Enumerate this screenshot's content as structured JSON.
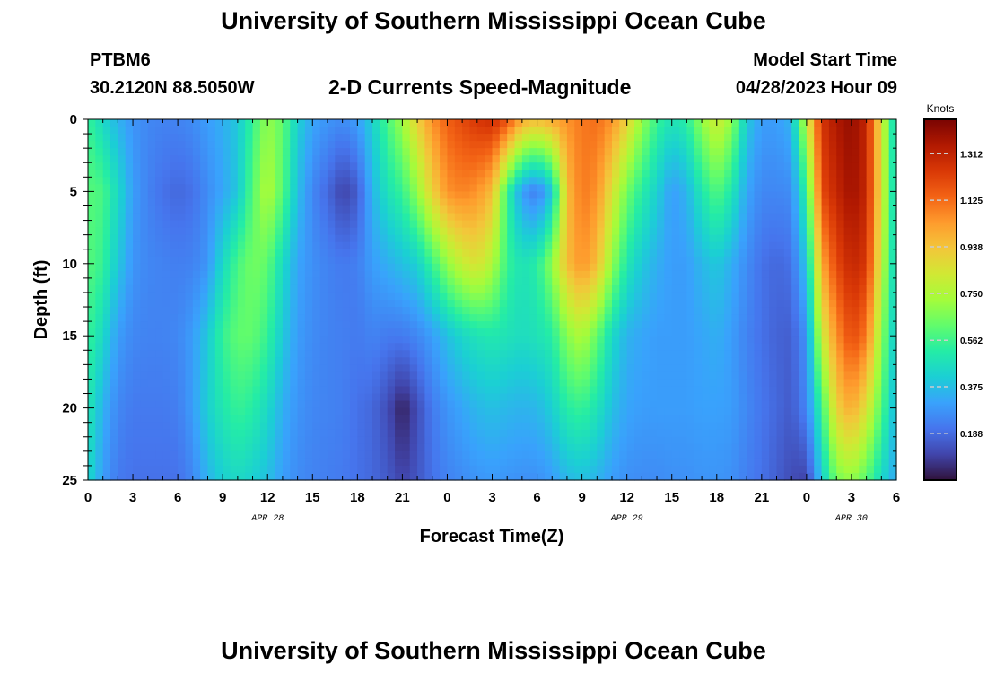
{
  "page": {
    "title_top": "University of Southern Mississippi Ocean Cube",
    "station_id": "PTBM6",
    "station_coords": "30.2120N  88.5050W",
    "subtitle": "2-D Currents Speed-Magnitude",
    "model_start_label": "Model Start Time",
    "model_start_value": "04/28/2023 Hour 09",
    "title_bottom": "University of Southern Mississippi Ocean Cube"
  },
  "colors": {
    "scale": [
      "#30123b",
      "#4145ab",
      "#4675ed",
      "#39a2fc",
      "#1bcfd4",
      "#24eca6",
      "#61fc6c",
      "#a4fc3b",
      "#d1e834",
      "#f3c63a",
      "#fe9b2d",
      "#f36315",
      "#d93806",
      "#b11901",
      "#7a0402"
    ]
  },
  "chart_data": {
    "type": "heatmap",
    "xlabel": "Forecast Time(Z)",
    "ylabel": "Depth (ft)",
    "x_tick_labels": [
      "0",
      "3",
      "6",
      "9",
      "12",
      "15",
      "18",
      "21",
      "0",
      "3",
      "6",
      "9",
      "12",
      "15",
      "18",
      "21",
      "0",
      "3",
      "6"
    ],
    "date_labels": [
      {
        "label": "APR 28",
        "at_hour": 12
      },
      {
        "label": "APR 29",
        "at_hour": 36
      },
      {
        "label": "APR 30",
        "at_hour": 51
      }
    ],
    "x_range_hours": [
      0,
      54
    ],
    "y_ticks": [
      0,
      5,
      10,
      15,
      20,
      25
    ],
    "y_range": [
      0,
      25
    ],
    "colorbar": {
      "unit_label": "Knots",
      "tick_labels": [
        "1.312",
        "1.125",
        "0.938",
        "0.750",
        "0.562",
        "0.375",
        "0.188"
      ],
      "tick_values": [
        1.312,
        1.125,
        0.938,
        0.75,
        0.562,
        0.375,
        0.188
      ],
      "range": [
        0.0,
        1.45
      ]
    },
    "depths_ft": [
      0,
      5,
      10,
      15,
      20,
      25
    ],
    "columns": [
      {
        "hour": 0,
        "speeds": [
          0.55,
          0.6,
          0.6,
          0.55,
          0.5,
          0.45
        ]
      },
      {
        "hour": 1,
        "speeds": [
          0.45,
          0.58,
          0.55,
          0.45,
          0.35,
          0.3
        ]
      },
      {
        "hour": 2,
        "speeds": [
          0.35,
          0.45,
          0.4,
          0.3,
          0.25,
          0.22
        ]
      },
      {
        "hour": 3,
        "speeds": [
          0.28,
          0.3,
          0.28,
          0.25,
          0.22,
          0.2
        ]
      },
      {
        "hour": 4,
        "speeds": [
          0.25,
          0.24,
          0.25,
          0.24,
          0.22,
          0.2
        ]
      },
      {
        "hour": 5,
        "speeds": [
          0.24,
          0.2,
          0.24,
          0.24,
          0.22,
          0.2
        ]
      },
      {
        "hour": 6,
        "speeds": [
          0.24,
          0.18,
          0.23,
          0.25,
          0.23,
          0.2
        ]
      },
      {
        "hour": 7,
        "speeds": [
          0.26,
          0.2,
          0.24,
          0.3,
          0.3,
          0.25
        ]
      },
      {
        "hour": 8,
        "speeds": [
          0.3,
          0.26,
          0.28,
          0.4,
          0.42,
          0.35
        ]
      },
      {
        "hour": 9,
        "speeds": [
          0.34,
          0.32,
          0.45,
          0.55,
          0.5,
          0.42
        ]
      },
      {
        "hour": 10,
        "speeds": [
          0.4,
          0.4,
          0.58,
          0.62,
          0.55,
          0.45
        ]
      },
      {
        "hour": 11,
        "speeds": [
          0.55,
          0.6,
          0.65,
          0.62,
          0.52,
          0.42
        ]
      },
      {
        "hour": 12,
        "speeds": [
          0.7,
          0.76,
          0.62,
          0.55,
          0.45,
          0.38
        ]
      },
      {
        "hour": 13,
        "speeds": [
          0.62,
          0.6,
          0.45,
          0.4,
          0.34,
          0.3
        ]
      },
      {
        "hour": 14,
        "speeds": [
          0.42,
          0.38,
          0.32,
          0.3,
          0.28,
          0.26
        ]
      },
      {
        "hour": 15,
        "speeds": [
          0.32,
          0.25,
          0.27,
          0.26,
          0.25,
          0.24
        ]
      },
      {
        "hour": 16,
        "speeds": [
          0.28,
          0.18,
          0.24,
          0.24,
          0.24,
          0.23
        ]
      },
      {
        "hour": 17,
        "speeds": [
          0.26,
          0.1,
          0.22,
          0.23,
          0.23,
          0.22
        ]
      },
      {
        "hour": 18,
        "speeds": [
          0.3,
          0.15,
          0.23,
          0.22,
          0.2,
          0.2
        ]
      },
      {
        "hour": 19,
        "speeds": [
          0.42,
          0.35,
          0.3,
          0.24,
          0.18,
          0.18
        ]
      },
      {
        "hour": 20,
        "speeds": [
          0.58,
          0.48,
          0.34,
          0.22,
          0.12,
          0.15
        ]
      },
      {
        "hour": 21,
        "speeds": [
          0.72,
          0.55,
          0.38,
          0.22,
          0.03,
          0.1
        ]
      },
      {
        "hour": 22,
        "speeds": [
          0.9,
          0.7,
          0.42,
          0.25,
          0.12,
          0.14
        ]
      },
      {
        "hour": 23,
        "speeds": [
          1.05,
          0.9,
          0.55,
          0.3,
          0.22,
          0.2
        ]
      },
      {
        "hour": 24,
        "speeds": [
          1.15,
          1.05,
          0.7,
          0.38,
          0.28,
          0.24
        ]
      },
      {
        "hour": 25,
        "speeds": [
          1.2,
          1.08,
          0.8,
          0.44,
          0.32,
          0.26
        ]
      },
      {
        "hour": 26,
        "speeds": [
          1.25,
          1.05,
          0.85,
          0.48,
          0.36,
          0.28
        ]
      },
      {
        "hour": 27,
        "speeds": [
          1.28,
          0.95,
          0.75,
          0.5,
          0.38,
          0.29
        ]
      },
      {
        "hour": 28,
        "speeds": [
          1.18,
          0.55,
          0.55,
          0.48,
          0.36,
          0.28
        ]
      },
      {
        "hour": 29,
        "speeds": [
          1.0,
          0.3,
          0.48,
          0.46,
          0.35,
          0.27
        ]
      },
      {
        "hour": 30,
        "speeds": [
          0.95,
          0.22,
          0.52,
          0.48,
          0.36,
          0.27
        ]
      },
      {
        "hour": 31,
        "speeds": [
          1.0,
          0.4,
          0.7,
          0.52,
          0.42,
          0.3
        ]
      },
      {
        "hour": 32,
        "speeds": [
          1.05,
          0.95,
          0.95,
          0.68,
          0.52,
          0.36
        ]
      },
      {
        "hour": 33,
        "speeds": [
          1.1,
          1.1,
          1.05,
          0.75,
          0.55,
          0.38
        ]
      },
      {
        "hour": 34,
        "speeds": [
          1.12,
          1.05,
          0.95,
          0.62,
          0.48,
          0.35
        ]
      },
      {
        "hour": 35,
        "speeds": [
          1.05,
          0.85,
          0.7,
          0.45,
          0.38,
          0.3
        ]
      },
      {
        "hour": 36,
        "speeds": [
          0.9,
          0.65,
          0.5,
          0.35,
          0.32,
          0.27
        ]
      },
      {
        "hour": 37,
        "speeds": [
          0.7,
          0.52,
          0.4,
          0.32,
          0.3,
          0.26
        ]
      },
      {
        "hour": 38,
        "speeds": [
          0.55,
          0.42,
          0.34,
          0.3,
          0.3,
          0.26
        ]
      },
      {
        "hour": 39,
        "speeds": [
          0.48,
          0.3,
          0.3,
          0.3,
          0.3,
          0.27
        ]
      },
      {
        "hour": 40,
        "speeds": [
          0.52,
          0.35,
          0.3,
          0.3,
          0.3,
          0.27
        ]
      },
      {
        "hour": 41,
        "speeds": [
          0.7,
          0.5,
          0.36,
          0.32,
          0.31,
          0.28
        ]
      },
      {
        "hour": 42,
        "speeds": [
          0.82,
          0.6,
          0.4,
          0.34,
          0.31,
          0.28
        ]
      },
      {
        "hour": 43,
        "speeds": [
          0.7,
          0.5,
          0.34,
          0.3,
          0.3,
          0.27
        ]
      },
      {
        "hour": 44,
        "speeds": [
          0.4,
          0.32,
          0.26,
          0.24,
          0.25,
          0.23
        ]
      },
      {
        "hour": 45,
        "speeds": [
          0.3,
          0.25,
          0.2,
          0.2,
          0.21,
          0.2
        ]
      },
      {
        "hour": 46,
        "speeds": [
          0.3,
          0.25,
          0.18,
          0.17,
          0.18,
          0.16
        ]
      },
      {
        "hour": 47,
        "speeds": [
          0.35,
          0.26,
          0.2,
          0.16,
          0.15,
          0.12
        ]
      },
      {
        "hour": 48,
        "speeds": [
          0.8,
          0.55,
          0.4,
          0.28,
          0.25,
          0.1
        ]
      },
      {
        "hour": 49,
        "speeds": [
          1.25,
          1.2,
          1.0,
          0.8,
          0.55,
          0.4
        ]
      },
      {
        "hour": 50,
        "speeds": [
          1.35,
          1.3,
          1.2,
          1.05,
          0.9,
          0.65
        ]
      },
      {
        "hour": 51,
        "speeds": [
          1.4,
          1.38,
          1.3,
          1.2,
          1.0,
          0.7
        ]
      },
      {
        "hour": 52,
        "speeds": [
          1.3,
          1.3,
          1.25,
          1.1,
          0.85,
          0.6
        ]
      },
      {
        "hour": 53,
        "speeds": [
          0.85,
          0.85,
          0.8,
          0.7,
          0.6,
          0.45
        ]
      },
      {
        "hour": 54,
        "speeds": [
          0.4,
          0.4,
          0.4,
          0.38,
          0.35,
          0.32
        ]
      }
    ]
  }
}
